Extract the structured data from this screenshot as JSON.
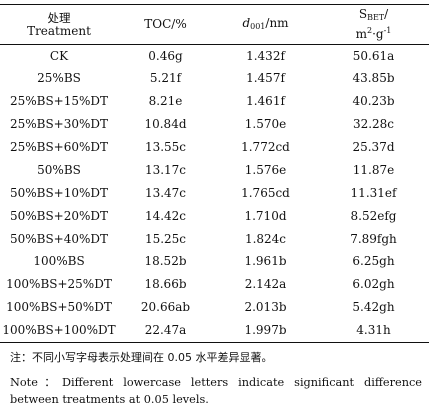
{
  "table": {
    "headers": {
      "treatment_zh": "处理",
      "treatment_en": "Treatment",
      "toc": "TOC/%",
      "d001_symbol": "d",
      "d001_subscript": "001",
      "d001_unit": "/nm",
      "sbet_symbol": "S",
      "sbet_subscript": "BET",
      "sbet_suffix": "/",
      "sbet_unit_main": "m",
      "sbet_unit_sup1": "2",
      "sbet_unit_mid": "·g",
      "sbet_unit_sup2": "-1"
    },
    "rows": [
      {
        "treatment": "CK",
        "toc": "0.46g",
        "d001": "1.432f",
        "sbet": "50.61a"
      },
      {
        "treatment": "25%BS",
        "toc": "5.21f",
        "d001": "1.457f",
        "sbet": "43.85b"
      },
      {
        "treatment": "25%BS+15%DT",
        "toc": "8.21e",
        "d001": "1.461f",
        "sbet": "40.23b"
      },
      {
        "treatment": "25%BS+30%DT",
        "toc": "10.84d",
        "d001": "1.570e",
        "sbet": "32.28c"
      },
      {
        "treatment": "25%BS+60%DT",
        "toc": "13.55c",
        "d001": "1.772cd",
        "sbet": "25.37d"
      },
      {
        "treatment": "50%BS",
        "toc": "13.17c",
        "d001": "1.576e",
        "sbet": "11.87e"
      },
      {
        "treatment": "50%BS+10%DT",
        "toc": "13.47c",
        "d001": "1.765cd",
        "sbet": "11.31ef"
      },
      {
        "treatment": "50%BS+20%DT",
        "toc": "14.42c",
        "d001": "1.710d",
        "sbet": "8.52efg"
      },
      {
        "treatment": "50%BS+40%DT",
        "toc": "15.25c",
        "d001": "1.824c",
        "sbet": "7.89fgh"
      },
      {
        "treatment": "100%BS",
        "toc": "18.52b",
        "d001": "1.961b",
        "sbet": "6.25gh"
      },
      {
        "treatment": "100%BS+25%DT",
        "toc": "18.66b",
        "d001": "2.142a",
        "sbet": "6.02gh"
      },
      {
        "treatment": "100%BS+50%DT",
        "toc": "20.66ab",
        "d001": "2.013b",
        "sbet": "5.42gh"
      },
      {
        "treatment": "100%BS+100%DT",
        "toc": "22.47a",
        "d001": "1.997b",
        "sbet": "4.31h"
      }
    ]
  },
  "notes": {
    "zh": "注：不同小写字母表示处理间在 0.05 水平差异显著。",
    "en": "Note：Different lowercase letters indicate significant difference between treatments at 0.05 levels."
  }
}
